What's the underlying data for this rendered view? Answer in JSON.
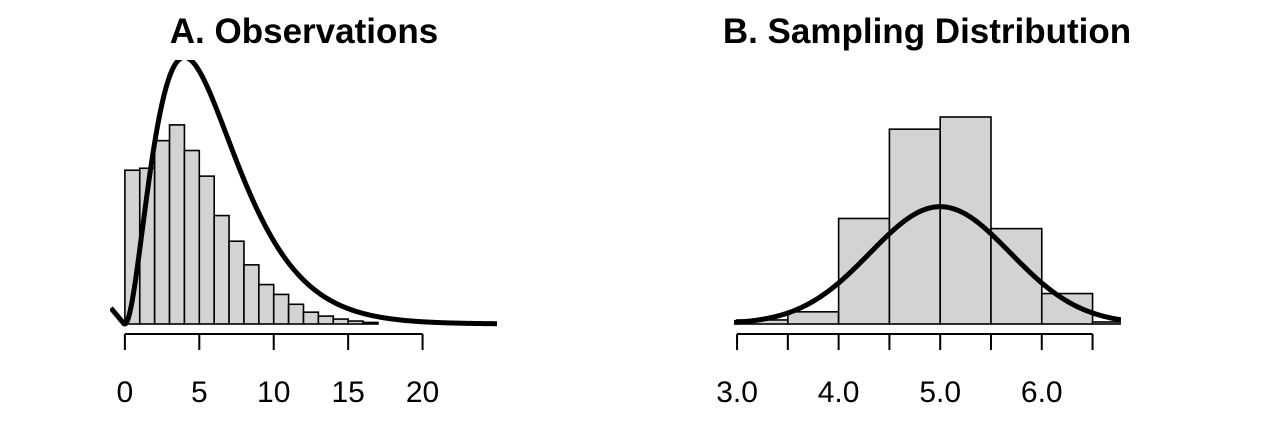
{
  "chart_data": [
    {
      "type": "bar",
      "title": "A. Observations",
      "xlabel": "",
      "ylabel": "",
      "bin_width": 1,
      "bins": [
        {
          "x0": 0,
          "x1": 1,
          "value": 0.078
        },
        {
          "x0": 1,
          "x1": 2,
          "value": 0.079
        },
        {
          "x0": 2,
          "x1": 3,
          "value": 0.093
        },
        {
          "x0": 3,
          "x1": 4,
          "value": 0.101
        },
        {
          "x0": 4,
          "x1": 5,
          "value": 0.088
        },
        {
          "x0": 5,
          "x1": 6,
          "value": 0.075
        },
        {
          "x0": 6,
          "x1": 7,
          "value": 0.055
        },
        {
          "x0": 7,
          "x1": 8,
          "value": 0.042
        },
        {
          "x0": 8,
          "x1": 9,
          "value": 0.03
        },
        {
          "x0": 9,
          "x1": 10,
          "value": 0.02
        },
        {
          "x0": 10,
          "x1": 11,
          "value": 0.015
        },
        {
          "x0": 11,
          "x1": 12,
          "value": 0.01
        },
        {
          "x0": 12,
          "x1": 13,
          "value": 0.006
        },
        {
          "x0": 13,
          "x1": 14,
          "value": 0.004
        },
        {
          "x0": 14,
          "x1": 15,
          "value": 0.0025
        },
        {
          "x0": 15,
          "x1": 16,
          "value": 0.0015
        },
        {
          "x0": 16,
          "x1": 17,
          "value": 0.0008
        }
      ],
      "density_curve": {
        "shape": "gamma",
        "k": 3,
        "theta": 2
      },
      "xlim": [
        -1,
        25
      ],
      "ylim": [
        0,
        0.105
      ],
      "x_ticks": [
        0,
        5,
        10,
        15,
        20
      ],
      "x_tick_labels": [
        "0",
        "5",
        "10",
        "15",
        "20"
      ],
      "grid": false,
      "legend": "none"
    },
    {
      "type": "bar",
      "title": "B. Sampling Distribution",
      "xlabel": "",
      "ylabel": "",
      "bin_width": 0.5,
      "bins": [
        {
          "x0": 3.0,
          "x1": 3.5,
          "value": 0.02
        },
        {
          "x0": 3.5,
          "x1": 4.0,
          "value": 0.06
        },
        {
          "x0": 4.0,
          "x1": 4.5,
          "value": 0.52
        },
        {
          "x0": 4.5,
          "x1": 5.0,
          "value": 0.96
        },
        {
          "x0": 5.0,
          "x1": 5.5,
          "value": 1.02
        },
        {
          "x0": 5.5,
          "x1": 6.0,
          "value": 0.47
        },
        {
          "x0": 6.0,
          "x1": 6.5,
          "value": 0.15
        },
        {
          "x0": 6.5,
          "x1": 7.0,
          "value": 0.01
        }
      ],
      "density_curve": {
        "shape": "normal",
        "mean": 5.0,
        "sd": 0.69
      },
      "xlim": [
        2.97,
        6.78
      ],
      "ylim": [
        0,
        1.02
      ],
      "x_ticks": [
        3.0,
        3.5,
        4.0,
        4.5,
        5.0,
        5.5,
        6.0,
        6.5
      ],
      "x_tick_labels": [
        "3.0",
        "",
        "4.0",
        "",
        "5.0",
        "",
        "6.0",
        ""
      ],
      "grid": false,
      "legend": "none"
    }
  ]
}
